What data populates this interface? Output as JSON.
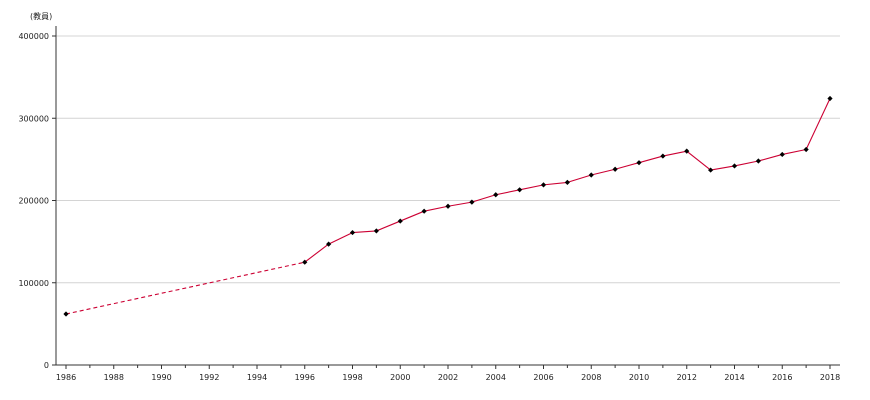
{
  "chart_data": {
    "type": "line",
    "unit_label": "(教員)",
    "xlim": [
      1986,
      2018
    ],
    "ylim": [
      0,
      400000
    ],
    "yticks": [
      0,
      100000,
      200000,
      300000,
      400000
    ],
    "xticks": [
      1986,
      1988,
      1990,
      1992,
      1994,
      1996,
      1998,
      2000,
      2002,
      2004,
      2006,
      2008,
      2010,
      2012,
      2014,
      2016,
      2018
    ],
    "grid": "horizontal",
    "series": [
      {
        "color": "#cc0033",
        "marker_color": "#000000",
        "dashed_segments": [
          [
            1986,
            1996
          ]
        ],
        "points": [
          {
            "x": 1986,
            "y": 62000
          },
          {
            "x": 1996,
            "y": 125000
          },
          {
            "x": 1997,
            "y": 147000
          },
          {
            "x": 1998,
            "y": 161000
          },
          {
            "x": 1999,
            "y": 163000
          },
          {
            "x": 2000,
            "y": 175000
          },
          {
            "x": 2001,
            "y": 187000
          },
          {
            "x": 2002,
            "y": 193000
          },
          {
            "x": 2003,
            "y": 198000
          },
          {
            "x": 2004,
            "y": 207000
          },
          {
            "x": 2005,
            "y": 213000
          },
          {
            "x": 2006,
            "y": 219000
          },
          {
            "x": 2007,
            "y": 222000
          },
          {
            "x": 2008,
            "y": 231000
          },
          {
            "x": 2009,
            "y": 238000
          },
          {
            "x": 2010,
            "y": 246000
          },
          {
            "x": 2011,
            "y": 254000
          },
          {
            "x": 2012,
            "y": 260000
          },
          {
            "x": 2013,
            "y": 237000
          },
          {
            "x": 2014,
            "y": 242000
          },
          {
            "x": 2015,
            "y": 248000
          },
          {
            "x": 2016,
            "y": 256000
          },
          {
            "x": 2017,
            "y": 262000
          },
          {
            "x": 2018,
            "y": 324000
          }
        ]
      }
    ]
  }
}
